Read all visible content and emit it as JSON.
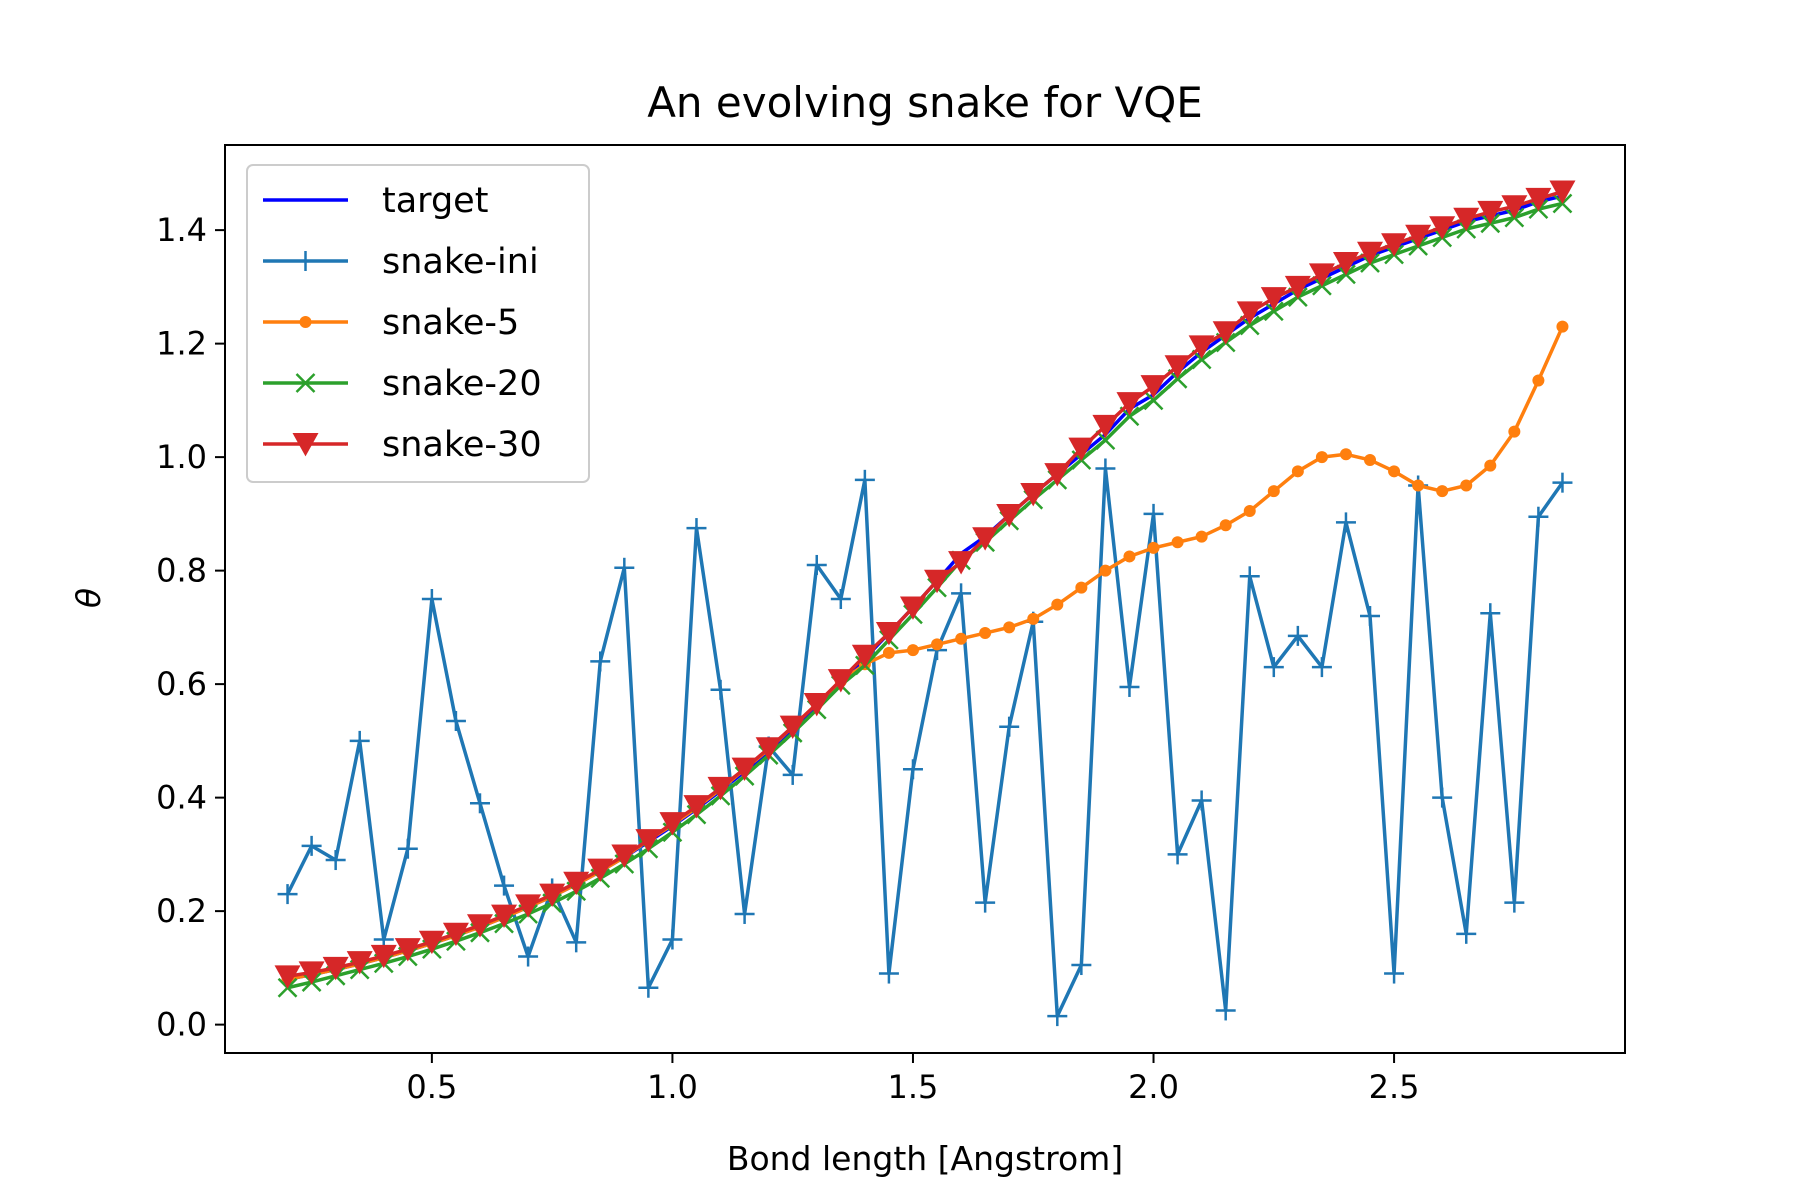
{
  "chart_data": {
    "type": "line",
    "title": "An evolving snake for VQE",
    "xlabel": "Bond length [Angstrom]",
    "ylabel": "θ",
    "xlim": [
      0.07,
      2.98
    ],
    "ylim": [
      -0.05,
      1.55
    ],
    "xticks": [
      0.5,
      1.0,
      1.5,
      2.0,
      2.5
    ],
    "xtick_labels": [
      "0.5",
      "1.0",
      "1.5",
      "2.0",
      "2.5"
    ],
    "yticks": [
      0.0,
      0.2,
      0.4,
      0.6,
      0.8,
      1.0,
      1.2,
      1.4
    ],
    "ytick_labels": [
      "0.0",
      "0.2",
      "0.4",
      "0.6",
      "0.8",
      "1.0",
      "1.2",
      "1.4"
    ],
    "grid": false,
    "legend_position": "upper-left",
    "x": [
      0.2,
      0.25,
      0.3,
      0.35,
      0.4,
      0.45,
      0.5,
      0.55,
      0.6,
      0.65,
      0.7,
      0.75,
      0.8,
      0.85,
      0.9,
      0.95,
      1.0,
      1.05,
      1.1,
      1.15,
      1.2,
      1.25,
      1.3,
      1.35,
      1.4,
      1.45,
      1.5,
      1.55,
      1.6,
      1.65,
      1.7,
      1.75,
      1.8,
      1.85,
      1.9,
      1.95,
      2.0,
      2.05,
      2.1,
      2.15,
      2.2,
      2.25,
      2.3,
      2.35,
      2.4,
      2.45,
      2.5,
      2.55,
      2.6,
      2.65,
      2.7,
      2.75,
      2.8,
      2.85
    ],
    "series": [
      {
        "name": "target",
        "color": "#0000ff",
        "marker": "none",
        "values": [
          0.08,
          0.088,
          0.097,
          0.107,
          0.118,
          0.13,
          0.143,
          0.157,
          0.172,
          0.189,
          0.207,
          0.226,
          0.247,
          0.27,
          0.295,
          0.322,
          0.35,
          0.38,
          0.412,
          0.446,
          0.482,
          0.52,
          0.56,
          0.602,
          0.645,
          0.69,
          0.735,
          0.782,
          0.83,
          0.86,
          0.898,
          0.935,
          0.97,
          1.005,
          1.04,
          1.085,
          1.11,
          1.15,
          1.185,
          1.215,
          1.245,
          1.27,
          1.295,
          1.315,
          1.335,
          1.355,
          1.37,
          1.385,
          1.4,
          1.415,
          1.425,
          1.435,
          1.45,
          1.46
        ]
      },
      {
        "name": "snake-ini",
        "color": "#1f77b4",
        "marker": "plus",
        "values": [
          0.23,
          0.315,
          0.29,
          0.5,
          0.15,
          0.31,
          0.75,
          0.535,
          0.39,
          0.245,
          0.12,
          0.24,
          0.145,
          0.64,
          0.805,
          0.065,
          0.15,
          0.875,
          0.59,
          0.195,
          0.49,
          0.44,
          0.81,
          0.75,
          0.96,
          0.09,
          0.45,
          0.66,
          0.76,
          0.215,
          0.525,
          0.71,
          0.015,
          0.105,
          0.98,
          0.595,
          0.9,
          0.3,
          0.395,
          0.025,
          0.79,
          0.63,
          0.685,
          0.63,
          0.885,
          0.72,
          0.09,
          0.95,
          0.4,
          0.16,
          0.725,
          0.215,
          0.895,
          0.955
        ]
      },
      {
        "name": "snake-5",
        "color": "#ff7f0e",
        "marker": "dot",
        "values": [
          0.08,
          0.088,
          0.097,
          0.107,
          0.118,
          0.13,
          0.143,
          0.157,
          0.172,
          0.189,
          0.207,
          0.226,
          0.247,
          0.27,
          0.295,
          0.325,
          0.352,
          0.382,
          0.415,
          0.45,
          0.485,
          0.525,
          0.565,
          0.605,
          0.635,
          0.655,
          0.66,
          0.67,
          0.68,
          0.69,
          0.7,
          0.715,
          0.74,
          0.77,
          0.8,
          0.825,
          0.84,
          0.85,
          0.86,
          0.88,
          0.905,
          0.94,
          0.975,
          1.0,
          1.005,
          0.995,
          0.975,
          0.95,
          0.94,
          0.95,
          0.985,
          1.045,
          1.135,
          1.23
        ]
      },
      {
        "name": "snake-20",
        "color": "#2ca02c",
        "marker": "x",
        "values": [
          0.065,
          0.075,
          0.086,
          0.097,
          0.108,
          0.12,
          0.133,
          0.147,
          0.162,
          0.178,
          0.195,
          0.214,
          0.235,
          0.258,
          0.283,
          0.31,
          0.339,
          0.37,
          0.403,
          0.438,
          0.475,
          0.514,
          0.555,
          0.598,
          0.633,
          0.678,
          0.723,
          0.77,
          0.818,
          0.85,
          0.888,
          0.925,
          0.96,
          0.995,
          1.03,
          1.072,
          1.1,
          1.138,
          1.172,
          1.202,
          1.232,
          1.257,
          1.282,
          1.302,
          1.322,
          1.342,
          1.357,
          1.372,
          1.387,
          1.402,
          1.412,
          1.422,
          1.437,
          1.447
        ]
      },
      {
        "name": "snake-30",
        "color": "#d62728",
        "marker": "triangle-down",
        "values": [
          0.085,
          0.092,
          0.1,
          0.11,
          0.121,
          0.133,
          0.146,
          0.16,
          0.175,
          0.192,
          0.21,
          0.229,
          0.25,
          0.273,
          0.298,
          0.325,
          0.355,
          0.385,
          0.417,
          0.451,
          0.487,
          0.525,
          0.565,
          0.607,
          0.65,
          0.69,
          0.735,
          0.782,
          0.815,
          0.857,
          0.898,
          0.935,
          0.97,
          1.015,
          1.055,
          1.095,
          1.125,
          1.16,
          1.195,
          1.22,
          1.255,
          1.28,
          1.3,
          1.322,
          1.342,
          1.36,
          1.375,
          1.39,
          1.405,
          1.42,
          1.432,
          1.442,
          1.455,
          1.468
        ]
      }
    ]
  }
}
